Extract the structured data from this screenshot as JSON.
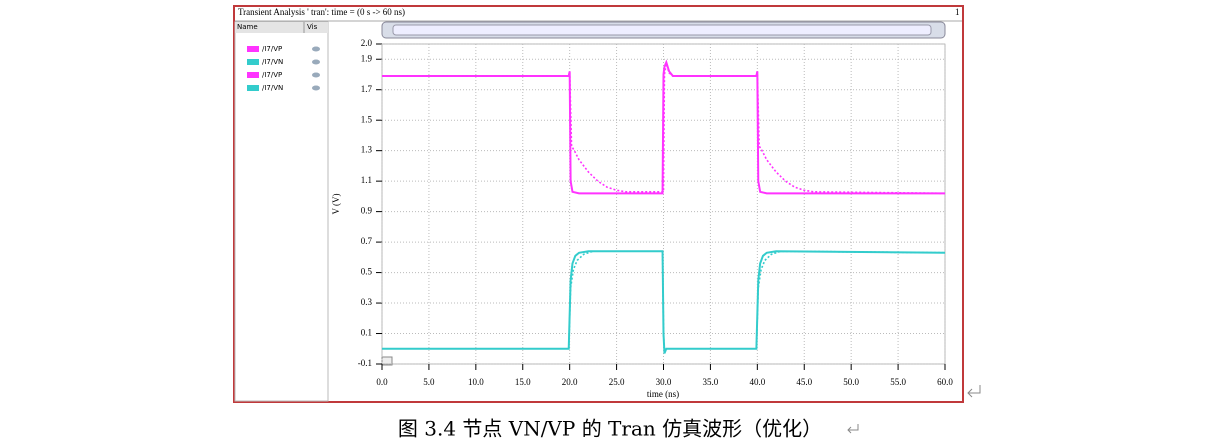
{
  "window_number": "1",
  "panel": {
    "name_header": "Name",
    "vis_header": "Vis"
  },
  "caption": "图 3.4 节点 VN/VP 的 Tran 仿真波形（优化）",
  "chart_data": {
    "type": "line",
    "title": "Transient Analysis ' tran': time = (0 s -> 60 ns)",
    "x_label": "time (ns)",
    "y_label": "V (V)",
    "grid": true,
    "xlim": [
      0,
      60
    ],
    "ylim": [
      -0.1,
      2.0
    ],
    "xticks": [
      {
        "value": 0,
        "label": "0.0"
      },
      {
        "value": 5,
        "label": "5.0"
      },
      {
        "value": 10,
        "label": "10.0"
      },
      {
        "value": 15,
        "label": "15.0"
      },
      {
        "value": 20,
        "label": "20.0"
      },
      {
        "value": 25,
        "label": "25.0"
      },
      {
        "value": 30,
        "label": "30.0"
      },
      {
        "value": 35,
        "label": "35.0"
      },
      {
        "value": 40,
        "label": "40.0"
      },
      {
        "value": 45,
        "label": "45.0"
      },
      {
        "value": 50,
        "label": "50.0"
      },
      {
        "value": 55,
        "label": "55.0"
      },
      {
        "value": 60,
        "label": "60.0"
      }
    ],
    "yticks": [
      -0.1,
      0.1,
      0.3,
      0.5,
      0.7,
      0.9,
      1.1,
      1.3,
      1.5,
      1.7,
      1.9,
      {
        "value": 2,
        "label": "2.0"
      }
    ],
    "series": [
      {
        "name": "/I7/VP",
        "color": "#ff33ff",
        "dashed": false,
        "x": [
          0,
          19.9,
          20,
          20.1,
          20.3,
          21,
          29.9,
          30,
          30.1,
          30.3,
          30.6,
          31,
          39.9,
          40,
          40.1,
          40.3,
          41,
          60
        ],
        "values": [
          1.79,
          1.79,
          1.82,
          1.1,
          1.03,
          1.02,
          1.02,
          1.8,
          1.85,
          1.88,
          1.82,
          1.79,
          1.79,
          1.82,
          1.1,
          1.03,
          1.02,
          1.02
        ]
      },
      {
        "name": "/I7/VN",
        "color": "#33cccc",
        "dashed": false,
        "x": [
          0,
          19.9,
          20.1,
          20.3,
          20.6,
          21,
          22,
          29.9,
          30,
          30.1,
          30.3,
          39.9,
          40.1,
          40.3,
          40.6,
          41,
          42,
          60
        ],
        "values": [
          0,
          0,
          0.45,
          0.56,
          0.61,
          0.63,
          0.64,
          0.64,
          0.1,
          -0.03,
          0,
          0,
          0.45,
          0.56,
          0.61,
          0.63,
          0.64,
          0.63
        ]
      },
      {
        "name": "/I7/VP",
        "color": "#ff33ff",
        "dashed": true,
        "x": [
          0,
          19.9,
          20,
          20.2,
          20.5,
          21,
          22,
          23,
          24,
          25,
          26,
          30,
          30.1,
          30.3,
          30.6,
          31,
          39.9,
          40,
          40.2,
          40.5,
          41,
          42,
          43,
          44,
          45,
          46,
          60
        ],
        "values": [
          1.79,
          1.79,
          1.82,
          1.33,
          1.3,
          1.24,
          1.16,
          1.1,
          1.06,
          1.04,
          1.03,
          1.03,
          1.8,
          1.87,
          1.81,
          1.79,
          1.79,
          1.82,
          1.33,
          1.3,
          1.24,
          1.16,
          1.1,
          1.06,
          1.04,
          1.03,
          1.02
        ]
      },
      {
        "name": "/I7/VN",
        "color": "#33cccc",
        "dashed": true,
        "x": [
          0,
          19.9,
          20.1,
          20.4,
          20.8,
          21.5,
          22.5,
          29.9,
          30,
          30.1,
          30.3,
          39.9,
          40.1,
          40.4,
          40.8,
          41.5,
          42.5,
          60
        ],
        "values": [
          0,
          0,
          0.4,
          0.52,
          0.58,
          0.62,
          0.64,
          0.64,
          0.1,
          -0.02,
          0,
          0,
          0.4,
          0.52,
          0.58,
          0.62,
          0.64,
          0.63
        ]
      }
    ]
  }
}
